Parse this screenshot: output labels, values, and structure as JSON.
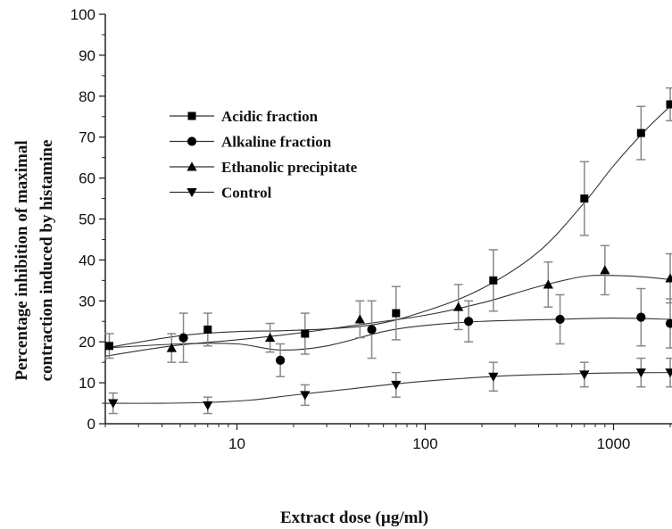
{
  "chart_data": {
    "type": "line",
    "x_scale": "log",
    "xlabel": "Extract dose (µg/ml)",
    "ylabel": "Percentage inhibition of maximal contraction induced by histamine",
    "ylabel_lines": [
      "Percentage inhibition of maximal",
      "contraction induced by histamine"
    ],
    "xlim": [
      2,
      2000
    ],
    "ylim": [
      0,
      100
    ],
    "x_ticks": [
      10,
      100,
      1000
    ],
    "x_tick_labels": [
      "10",
      "100",
      "1000"
    ],
    "y_ticks": [
      0,
      10,
      20,
      30,
      40,
      50,
      60,
      70,
      80,
      90,
      100
    ],
    "y_tick_labels": [
      "0",
      "10",
      "20",
      "30",
      "40",
      "50",
      "60",
      "70",
      "80",
      "90",
      "100"
    ],
    "grid": false,
    "legend_position": "top-left",
    "series": [
      {
        "name": "Acidic fraction",
        "marker": "square",
        "x": [
          2.1,
          7,
          23,
          70,
          230,
          700,
          1400,
          2000
        ],
        "y": [
          19,
          23,
          22,
          27,
          35,
          55,
          71,
          78
        ],
        "err": [
          3,
          4,
          5,
          6.5,
          7.5,
          9,
          6.5,
          4
        ]
      },
      {
        "name": "Alkaline fraction",
        "marker": "circle",
        "x": [
          5.2,
          17,
          52,
          170,
          520,
          1400,
          2000
        ],
        "y": [
          21,
          15.5,
          23,
          25,
          25.5,
          26,
          24.5
        ],
        "err": [
          6,
          4,
          7,
          5,
          6,
          7,
          6
        ]
      },
      {
        "name": "Ethanolic precipitate",
        "marker": "triangle-up",
        "x": [
          4.5,
          15,
          45,
          150,
          450,
          900,
          2000
        ],
        "y": [
          18.5,
          21,
          25.5,
          28.5,
          34,
          37.5,
          35.5
        ],
        "err": [
          3.5,
          3.5,
          4.5,
          5.5,
          5.5,
          6,
          6
        ]
      },
      {
        "name": "Control",
        "marker": "triangle-down",
        "x": [
          2.2,
          7,
          23,
          70,
          230,
          700,
          1400,
          2000
        ],
        "y": [
          5,
          4.5,
          7,
          9.5,
          11.5,
          12,
          12.5,
          12.5
        ],
        "err": [
          2.5,
          2,
          2.5,
          3,
          3.5,
          3,
          3.5,
          3.5
        ]
      }
    ],
    "fit_curves": [
      {
        "series": "Acidic fraction",
        "x": [
          2,
          5,
          10,
          20,
          50,
          100,
          200,
          400,
          700,
          1000,
          1500,
          2000
        ],
        "y": [
          18.5,
          21.5,
          22.5,
          22.8,
          24,
          27.5,
          33,
          42,
          54,
          63,
          72,
          77.5
        ]
      },
      {
        "series": "Alkaline fraction",
        "x": [
          2,
          5,
          10,
          17,
          30,
          60,
          100,
          200,
          500,
          1000,
          2000
        ],
        "y": [
          18.5,
          19.5,
          19.5,
          18,
          19,
          22.5,
          24,
          25,
          25.5,
          25.8,
          25.5
        ]
      },
      {
        "series": "Ethanolic precipitate",
        "x": [
          2,
          4.5,
          10,
          20,
          50,
          100,
          200,
          400,
          700,
          1000,
          1500,
          2000
        ],
        "y": [
          16.5,
          19,
          20.5,
          22,
          24.5,
          26.5,
          29.5,
          33.5,
          36,
          36.2,
          35.8,
          35.2
        ]
      },
      {
        "series": "Control",
        "x": [
          2,
          4,
          7,
          12,
          20,
          40,
          80,
          150,
          300,
          600,
          1000,
          2000
        ],
        "y": [
          5,
          5,
          5.2,
          5.8,
          7,
          8.5,
          10,
          11,
          11.8,
          12.2,
          12.4,
          12.5
        ]
      }
    ]
  }
}
